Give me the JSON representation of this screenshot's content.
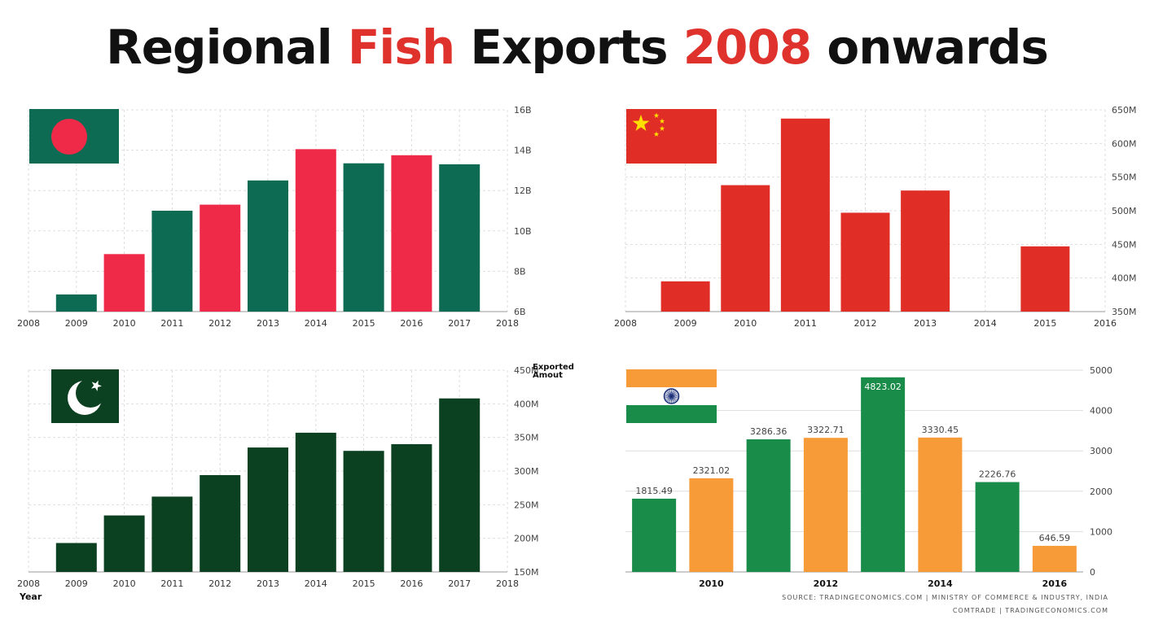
{
  "page": {
    "title_parts": [
      "Regional ",
      "Fish",
      " Exports ",
      "2008",
      " onwards"
    ]
  },
  "colors": {
    "bangladesh_green": "#0c6b52",
    "bangladesh_red": "#ee2a48",
    "china_red": "#e02d26",
    "china_yellow": "#ffde00",
    "pakistan_green": "#0b4020",
    "india_green": "#1a8c49",
    "india_saffron": "#f79a38",
    "grid": "#dddddd"
  },
  "chart_data": [
    {
      "id": "bangladesh",
      "type": "bar",
      "flag": "bangladesh-flag",
      "x": [
        2009,
        2010,
        2011,
        2012,
        2013,
        2014,
        2015,
        2016,
        2017
      ],
      "values": [
        6.85,
        8.85,
        11.0,
        11.3,
        12.5,
        14.05,
        13.35,
        13.75,
        13.3
      ],
      "bar_colors": [
        "#0c6b52",
        "#ee2a48",
        "#0c6b52",
        "#ee2a48",
        "#0c6b52",
        "#ee2a48",
        "#0c6b52",
        "#ee2a48",
        "#0c6b52"
      ],
      "xticks": [
        "2008",
        "2009",
        "2010",
        "2011",
        "2012",
        "2013",
        "2014",
        "2015",
        "2016",
        "2017",
        "2018"
      ],
      "xlim": [
        2008,
        2018
      ],
      "yticks": [
        6,
        8,
        10,
        12,
        14,
        16
      ],
      "ytick_labels": [
        "6B",
        "8B",
        "10B",
        "12B",
        "14B",
        "16B"
      ],
      "ylim": [
        6,
        16
      ],
      "grid": true
    },
    {
      "id": "china",
      "type": "bar",
      "flag": "china-flag",
      "x": [
        2009,
        2010,
        2011,
        2012,
        2013,
        2015
      ],
      "values": [
        395,
        538,
        637,
        497,
        530,
        447
      ],
      "bar_colors": [
        "#e02d26",
        "#e02d26",
        "#e02d26",
        "#e02d26",
        "#e02d26",
        "#e02d26"
      ],
      "xticks": [
        "2008",
        "2009",
        "2010",
        "2011",
        "2012",
        "2013",
        "2014",
        "2015",
        "2016"
      ],
      "xlim": [
        2008,
        2016
      ],
      "yticks": [
        350,
        400,
        450,
        500,
        550,
        600,
        650
      ],
      "ytick_labels": [
        "350M",
        "400M",
        "450M",
        "500M",
        "550M",
        "600M",
        "650M"
      ],
      "ylim": [
        350,
        650
      ],
      "grid": true
    },
    {
      "id": "pakistan",
      "type": "bar",
      "flag": "pakistan-flag",
      "x": [
        2009,
        2010,
        2011,
        2012,
        2013,
        2014,
        2015,
        2016,
        2017
      ],
      "values": [
        193,
        234,
        262,
        294,
        335,
        357,
        330,
        340,
        408
      ],
      "bar_colors": [
        "#0b4020",
        "#0b4020",
        "#0b4020",
        "#0b4020",
        "#0b4020",
        "#0b4020",
        "#0b4020",
        "#0b4020",
        "#0b4020"
      ],
      "xticks": [
        "2008",
        "2009",
        "2010",
        "2011",
        "2012",
        "2013",
        "2014",
        "2015",
        "2016",
        "2017",
        "2018"
      ],
      "xlim": [
        2008,
        2018
      ],
      "yticks": [
        150,
        200,
        250,
        300,
        350,
        400,
        450
      ],
      "ytick_labels": [
        "150M",
        "200M",
        "250M",
        "300M",
        "350M",
        "400M",
        "450M"
      ],
      "ylim": [
        150,
        450
      ],
      "ylabel": "Exported Amout",
      "xlabel": "Year",
      "grid": true
    },
    {
      "id": "india",
      "type": "bar",
      "flag": "india-flag",
      "x": [
        2009,
        2010,
        2011,
        2012,
        2013,
        2014,
        2015,
        2016
      ],
      "values": [
        1815.49,
        2321.02,
        3286.36,
        3322.71,
        4823.02,
        3330.45,
        2226.76,
        646.59
      ],
      "data_labels": [
        "1815.49",
        "2321.02",
        "3286.36",
        "3322.71",
        "4823.02",
        "3330.45",
        "2226.76",
        "646.59"
      ],
      "bar_colors": [
        "#1a8c49",
        "#f79a38",
        "#1a8c49",
        "#f79a38",
        "#1a8c49",
        "#f79a38",
        "#1a8c49",
        "#f79a38"
      ],
      "xticks": [
        "2010",
        "2012",
        "2014",
        "2016"
      ],
      "xtick_values": [
        2010,
        2012,
        2014,
        2016
      ],
      "xlim": [
        2008.5,
        2016.5
      ],
      "yticks": [
        0,
        1000,
        2000,
        3000,
        4000,
        5000
      ],
      "ytick_labels": [
        "0",
        "1000",
        "2000",
        "3000",
        "4000",
        "5000"
      ],
      "ylim": [
        0,
        5000
      ],
      "source_line1": "SOURCE: TRADINGECONOMICS.COM | MINISTRY OF COMMERCE & INDUSTRY, INDIA",
      "source_line2": "COMTRADE | TRADINGECONOMICS.COM",
      "grid": true
    }
  ]
}
